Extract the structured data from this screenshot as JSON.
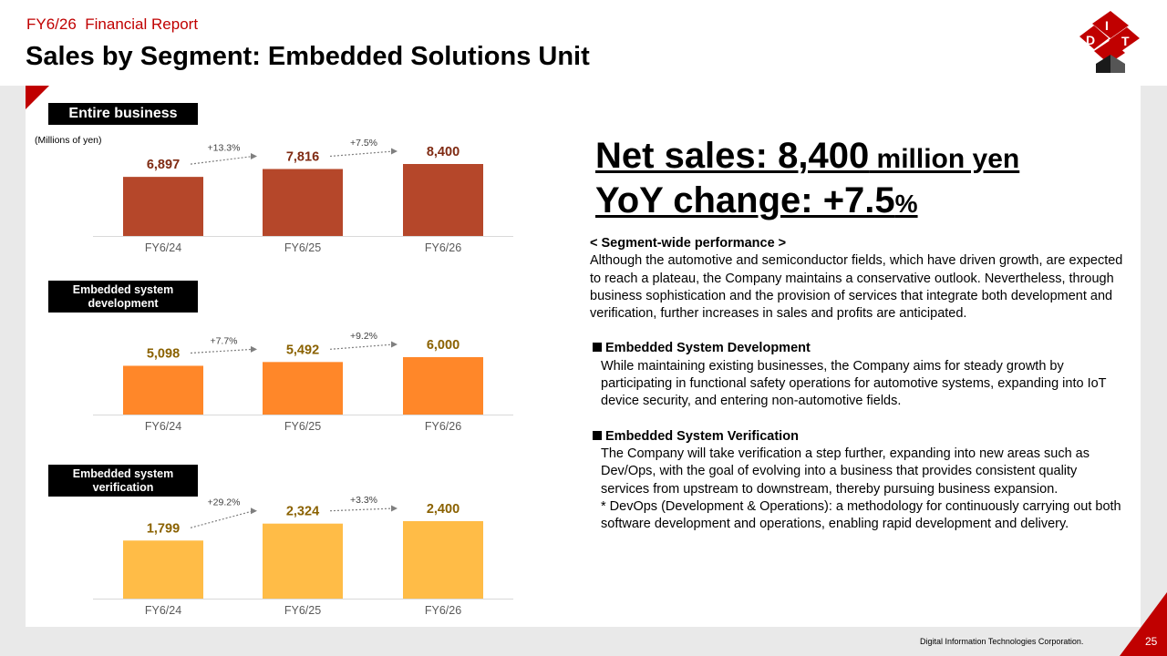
{
  "header": {
    "report_label": "FY6/26  Financial Report",
    "title": "Sales by Segment: Embedded Solutions Unit"
  },
  "logo": {
    "letters": [
      "D",
      "I",
      "T"
    ],
    "colors": {
      "primary": "#c00000",
      "dark": "#1a1a1a"
    }
  },
  "units_note": "(Millions of yen)",
  "colors": {
    "accent": "#c00000",
    "bar_entire": "#b5472a",
    "bar_development": "#ff8729",
    "bar_verification": "#ffbc47",
    "value_entire": "#7f2a12",
    "value_other": "#8a6100"
  },
  "chart_data": [
    {
      "type": "bar",
      "title": "Entire business",
      "categories": [
        "FY6/24",
        "FY6/25",
        "FY6/26"
      ],
      "values": [
        6897,
        7816,
        8400
      ],
      "value_labels": [
        "6,897",
        "7,816",
        "8,400"
      ],
      "growth_labels": [
        "+13.3%",
        "+7.5%"
      ],
      "ylim": [
        0,
        9000
      ],
      "xlabel": "",
      "ylabel": ""
    },
    {
      "type": "bar",
      "title": "Embedded system development",
      "categories": [
        "FY6/24",
        "FY6/25",
        "FY6/26"
      ],
      "values": [
        5098,
        5492,
        6000
      ],
      "value_labels": [
        "5,098",
        "5,492",
        "6,000"
      ],
      "growth_labels": [
        "+7.7%",
        "+9.2%"
      ],
      "ylim": [
        0,
        9000
      ],
      "xlabel": "",
      "ylabel": ""
    },
    {
      "type": "bar",
      "title": "Embedded system verification",
      "categories": [
        "FY6/24",
        "FY6/25",
        "FY6/26"
      ],
      "values": [
        1799,
        2324,
        2400
      ],
      "value_labels": [
        "1,799",
        "2,324",
        "2,400"
      ],
      "growth_labels": [
        "+29.2%",
        "+3.3%"
      ],
      "ylim": [
        0,
        3000
      ],
      "xlabel": "",
      "ylabel": ""
    }
  ],
  "segments": {
    "entire": "Entire business",
    "development_line1": "Embedded system",
    "development_line2": "development",
    "verification_line1": "Embedded system",
    "verification_line2": "verification"
  },
  "headline": {
    "sales_prefix": "Net sales: 8,400",
    "sales_unit": " million yen",
    "yoy_prefix": "YoY change: +7.5",
    "yoy_unit": "%"
  },
  "body": {
    "overview_heading": "< Segment-wide performance >",
    "overview_text": "Although the automotive and semiconductor fields, which have driven growth, are expected to reach a plateau, the Company maintains a conservative outlook. Nevertheless, through business sophistication and the provision of services that integrate both development and verification, further increases in sales and profits are anticipated.",
    "development_heading": "Embedded System Development",
    "development_text": "While maintaining existing businesses, the Company aims for steady growth by participating in functional safety operations for automotive systems, expanding into IoT device security, and entering non-automotive fields.",
    "verification_heading": "Embedded System Verification",
    "verification_text": "The Company will take verification a step further, expanding into new areas such as Dev/Ops, with the goal of evolving into a business that provides consistent quality services from upstream to downstream, thereby pursuing business expansion.",
    "devops_note": "* DevOps (Development & Operations): a methodology for continuously carrying out both software development and operations, enabling rapid development and delivery."
  },
  "footer": {
    "company": "Digital Information Technologies Corporation.",
    "page_number": "25"
  }
}
